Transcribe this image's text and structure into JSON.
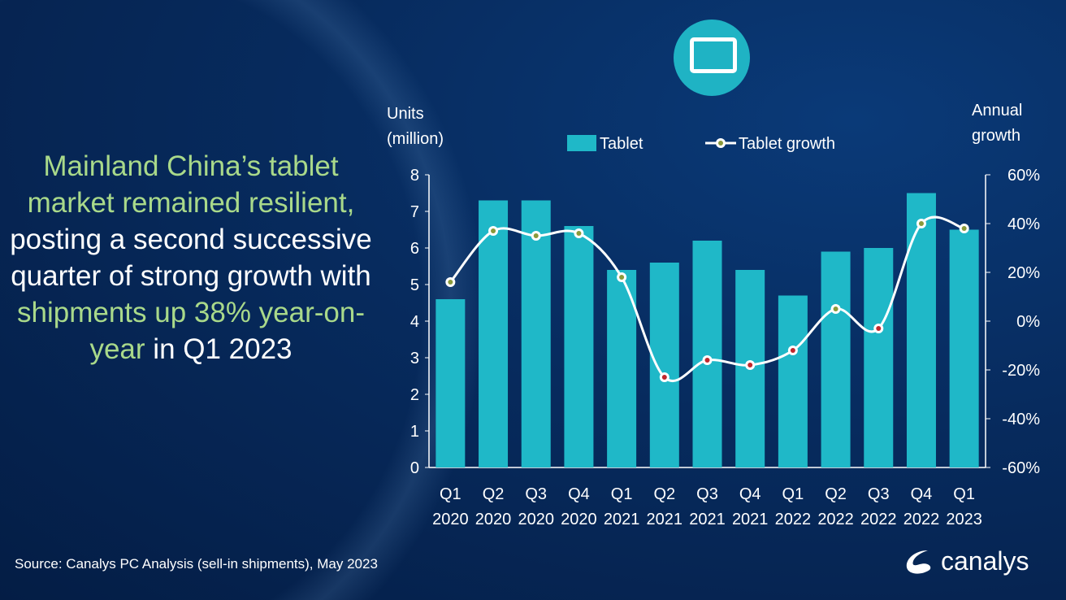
{
  "headline": {
    "p1": "Mainland China’s tablet market remained resilient,",
    "p2": " posting a second successive quarter of strong growth with ",
    "p3": "shipments up 38% year-on-year",
    "p4": " in Q1 2023"
  },
  "source": "Source:  Canalys PC Analysis (sell-in shipments), May 2023",
  "logo": "canalys",
  "colors": {
    "bar": "#1fb8c8",
    "line": "#ffffff",
    "dot_pos": "#8a9a3a",
    "dot_neg": "#c0282d"
  },
  "chart_data": {
    "type": "bar",
    "title": "",
    "ylabel": "Units (million)",
    "ylabel_lines": [
      "Units",
      "(million)"
    ],
    "y2label_lines": [
      "Annual",
      "growth"
    ],
    "ylim": [
      0,
      8
    ],
    "y2lim": [
      -60,
      60
    ],
    "yticks": [
      "0",
      "1",
      "2",
      "3",
      "4",
      "5",
      "6",
      "7",
      "8"
    ],
    "y2ticks": [
      "-60%",
      "-40%",
      "-20%",
      "0%",
      "20%",
      "40%",
      "60%"
    ],
    "categories": [
      [
        "Q1",
        "2020"
      ],
      [
        "Q2",
        "2020"
      ],
      [
        "Q3",
        "2020"
      ],
      [
        "Q4",
        "2020"
      ],
      [
        "Q1",
        "2021"
      ],
      [
        "Q2",
        "2021"
      ],
      [
        "Q3",
        "2021"
      ],
      [
        "Q4",
        "2021"
      ],
      [
        "Q1",
        "2022"
      ],
      [
        "Q2",
        "2022"
      ],
      [
        "Q3",
        "2022"
      ],
      [
        "Q4",
        "2022"
      ],
      [
        "Q1",
        "2023"
      ]
    ],
    "series": [
      {
        "name": "Tablet",
        "type": "bar",
        "axis": "left",
        "values": [
          4.6,
          7.3,
          7.3,
          6.6,
          5.4,
          5.6,
          6.2,
          5.4,
          4.7,
          5.9,
          6.0,
          7.5,
          6.5
        ]
      },
      {
        "name": "Tablet growth",
        "type": "line",
        "axis": "right",
        "values": [
          16,
          37,
          35,
          36,
          18,
          -23,
          -16,
          -18,
          -12,
          5,
          -3,
          40,
          38
        ]
      }
    ],
    "legend": [
      "Tablet",
      "Tablet growth"
    ],
    "legend_position": "top"
  }
}
